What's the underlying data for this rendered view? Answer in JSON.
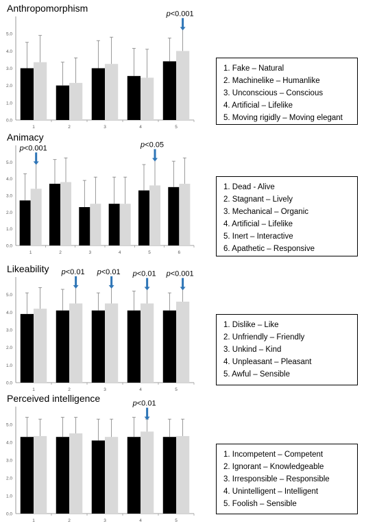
{
  "colors": {
    "bar_dark": "#000000",
    "bar_light": "#d9d9d9",
    "error": "#808080",
    "arrow": "#2e75b6",
    "axis": "#808080"
  },
  "chart_data": [
    {
      "type": "bar",
      "title": "Anthropomorphism",
      "categories": [
        "1",
        "2",
        "3",
        "4",
        "5"
      ],
      "ylim": [
        0,
        6
      ],
      "yticks": [
        "0.0",
        "1.0",
        "2.0",
        "3.0",
        "4.0",
        "5.0"
      ],
      "series": [
        {
          "values": [
            3.0,
            2.0,
            3.0,
            2.55,
            3.4
          ],
          "errors": [
            1.5,
            1.35,
            1.6,
            1.6,
            1.35
          ]
        },
        {
          "values": [
            3.35,
            2.15,
            3.25,
            2.45,
            4.0
          ],
          "errors": [
            1.55,
            1.45,
            1.55,
            1.65,
            1.35
          ]
        }
      ],
      "annotations": [
        {
          "category_index": 4,
          "text": "p<0.001"
        }
      ],
      "legend": [
        "1. Fake – Natural",
        "2. Machinelike – Humanlike",
        "3. Unconscious – Conscious",
        "4. Artificial – Lifelike",
        "5. Moving rigidly – Moving elegant"
      ]
    },
    {
      "type": "bar",
      "title": "Animacy",
      "categories": [
        "1",
        "2",
        "3",
        "4",
        "5",
        "6"
      ],
      "ylim": [
        0,
        6
      ],
      "yticks": [
        "0.0",
        "1.0",
        "2.0",
        "3.0",
        "4.0",
        "5.0"
      ],
      "series": [
        {
          "values": [
            2.7,
            3.7,
            2.3,
            2.5,
            3.3,
            3.5
          ],
          "errors": [
            1.6,
            1.45,
            1.6,
            1.6,
            1.55,
            1.55
          ]
        },
        {
          "values": [
            3.4,
            3.8,
            2.5,
            2.5,
            3.6,
            3.7
          ],
          "errors": [
            1.6,
            1.45,
            1.6,
            1.6,
            1.6,
            1.55
          ]
        }
      ],
      "annotations": [
        {
          "category_index": 0,
          "text": "p<0.001"
        },
        {
          "category_index": 4,
          "text": "p<0.05"
        }
      ],
      "legend": [
        "1. Dead - Alive",
        "2. Stagnant – Lively",
        "3. Mechanical – Organic",
        "4. Artificial – Lifelike",
        "5. Inert – Interactive",
        "6. Apathetic – Responsive"
      ]
    },
    {
      "type": "bar",
      "title": "Likeability",
      "categories": [
        "1",
        "2",
        "3",
        "4",
        "5"
      ],
      "ylim": [
        0,
        6
      ],
      "yticks": [
        "0.0",
        "1.0",
        "2.0",
        "3.0",
        "4.0",
        "5.0"
      ],
      "series": [
        {
          "values": [
            3.9,
            4.1,
            4.1,
            4.1,
            4.1
          ],
          "errors": [
            1.2,
            1.2,
            1.0,
            1.1,
            1.0
          ]
        },
        {
          "values": [
            4.2,
            4.5,
            4.5,
            4.5,
            4.6
          ],
          "errors": [
            1.2,
            1.0,
            1.0,
            0.9,
            0.8
          ]
        }
      ],
      "annotations": [
        {
          "category_index": 1,
          "text": "p<0.01"
        },
        {
          "category_index": 2,
          "text": "p<0.01"
        },
        {
          "category_index": 3,
          "text": "p<0.01"
        },
        {
          "category_index": 4,
          "text": "p<0.001"
        }
      ],
      "legend": [
        "1. Dislike – Like",
        "2. Unfriendly – Friendly",
        "3. Unkind – Kind",
        "4. Unpleasant – Pleasant",
        "5. Awful – Sensible"
      ]
    },
    {
      "type": "bar",
      "title": "Perceived intelligence",
      "categories": [
        "1",
        "2",
        "3",
        "4",
        "5"
      ],
      "ylim": [
        0,
        6
      ],
      "yticks": [
        "0.0",
        "1.0",
        "2.0",
        "3.0",
        "4.0",
        "5.0"
      ],
      "series": [
        {
          "values": [
            4.3,
            4.3,
            4.1,
            4.3,
            4.3
          ],
          "errors": [
            1.1,
            1.1,
            1.2,
            1.1,
            1.0
          ]
        },
        {
          "values": [
            4.35,
            4.5,
            4.3,
            4.6,
            4.35
          ],
          "errors": [
            0.95,
            0.9,
            1.0,
            0.7,
            0.95
          ]
        }
      ],
      "annotations": [
        {
          "category_index": 3,
          "text": "p<0.01"
        }
      ],
      "legend": [
        "1. Incompetent – Competent",
        "2. Ignorant – Knowledgeable",
        "3. Irresponsible – Responsible",
        "4. Unintelligent – Intelligent",
        "5. Foolish – Sensible"
      ]
    }
  ]
}
